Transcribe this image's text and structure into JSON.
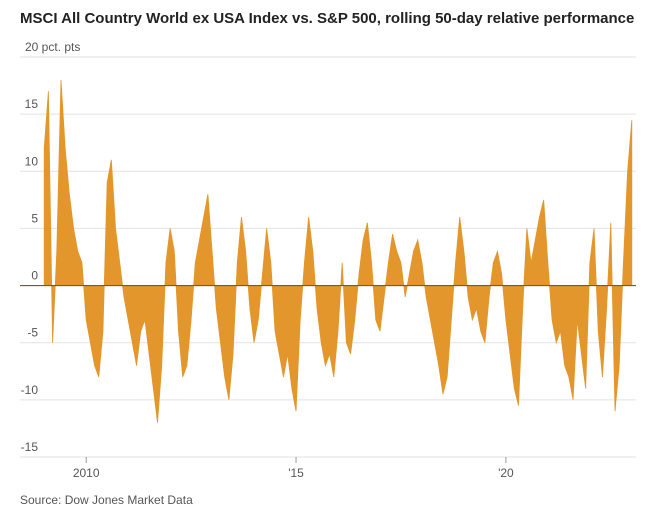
{
  "chart_data": {
    "type": "area",
    "title": "MSCI All Country World ex USA Index vs. S&P 500, rolling 50-day relative performance",
    "source": "Source: Dow Jones Market Data",
    "color": "#e3962b",
    "x": [
      2009.0,
      2009.1,
      2009.2,
      2009.3,
      2009.4,
      2009.5,
      2009.6,
      2009.7,
      2009.8,
      2009.9,
      2010.0,
      2010.1,
      2010.2,
      2010.3,
      2010.4,
      2010.5,
      2010.6,
      2010.7,
      2010.8,
      2010.9,
      2011.0,
      2011.1,
      2011.2,
      2011.3,
      2011.4,
      2011.5,
      2011.6,
      2011.7,
      2011.8,
      2011.9,
      2012.0,
      2012.1,
      2012.2,
      2012.3,
      2012.4,
      2012.5,
      2012.6,
      2012.7,
      2012.8,
      2012.9,
      2013.0,
      2013.1,
      2013.2,
      2013.3,
      2013.4,
      2013.5,
      2013.6,
      2013.7,
      2013.8,
      2013.9,
      2014.0,
      2014.1,
      2014.2,
      2014.3,
      2014.4,
      2014.5,
      2014.6,
      2014.7,
      2014.8,
      2014.9,
      2015.0,
      2015.1,
      2015.2,
      2015.3,
      2015.4,
      2015.5,
      2015.6,
      2015.7,
      2015.8,
      2015.9,
      2016.0,
      2016.1,
      2016.2,
      2016.3,
      2016.4,
      2016.5,
      2016.6,
      2016.7,
      2016.8,
      2016.9,
      2017.0,
      2017.1,
      2017.2,
      2017.3,
      2017.4,
      2017.5,
      2017.6,
      2017.7,
      2017.8,
      2017.9,
      2018.0,
      2018.1,
      2018.2,
      2018.3,
      2018.4,
      2018.5,
      2018.6,
      2018.7,
      2018.8,
      2018.9,
      2019.0,
      2019.1,
      2019.2,
      2019.3,
      2019.4,
      2019.5,
      2019.6,
      2019.7,
      2019.8,
      2019.9,
      2020.0,
      2020.1,
      2020.2,
      2020.3,
      2020.4,
      2020.5,
      2020.6,
      2020.7,
      2020.8,
      2020.9,
      2021.0,
      2021.1,
      2021.2,
      2021.3,
      2021.4,
      2021.5,
      2021.6,
      2021.7,
      2021.8,
      2021.9,
      2022.0,
      2022.1,
      2022.2,
      2022.3,
      2022.4,
      2022.5,
      2022.6,
      2022.7,
      2022.8,
      2022.9,
      2023.0
    ],
    "values": [
      12,
      17,
      -5,
      3,
      18,
      12,
      8,
      5,
      3,
      2,
      -3,
      -5,
      -7,
      -8,
      -4,
      9,
      11,
      5,
      2,
      -1,
      -3,
      -5,
      -7,
      -4,
      -3,
      -6,
      -9,
      -12,
      -7,
      2,
      5,
      3,
      -4,
      -8,
      -7,
      -3,
      2,
      4,
      6,
      8,
      3,
      -2,
      -5,
      -8,
      -10,
      -6,
      2,
      6,
      3,
      -2,
      -5,
      -3,
      1,
      5,
      2,
      -4,
      -6,
      -8,
      -6,
      -9,
      -11,
      -3,
      2,
      6,
      3,
      -2,
      -5,
      -7,
      -6,
      -8,
      -4,
      2,
      -5,
      -6,
      -3,
      1,
      4,
      5.5,
      2,
      -3,
      -4,
      -1,
      2,
      4.5,
      3,
      2,
      -1,
      1,
      3,
      4,
      2,
      -1,
      -3,
      -5,
      -7,
      -9.5,
      -8,
      -3,
      2,
      6,
      3,
      -1,
      -3,
      -2,
      -4,
      -5,
      -1,
      2,
      3,
      1,
      -3,
      -6,
      -9,
      -10.5,
      -2,
      5,
      2,
      4,
      6,
      7.5,
      2,
      -3,
      -5,
      -4,
      -7,
      -8,
      -10,
      -3,
      -6,
      -9,
      2,
      5,
      -4,
      -8,
      -2,
      5.5,
      -11,
      -7,
      2,
      10,
      14.5
    ],
    "xlim": [
      2008.9,
      2023.1
    ],
    "xticks": [
      2010,
      {
        "value": 2015,
        "label": "'15"
      },
      {
        "value": 2020,
        "label": "'20"
      }
    ],
    "ylim": [
      -15,
      20
    ],
    "yticks": [
      {
        "value": 20,
        "label": "20 pct. pts"
      },
      15,
      10,
      5,
      0,
      -5,
      -10,
      -15
    ],
    "grid": true
  }
}
